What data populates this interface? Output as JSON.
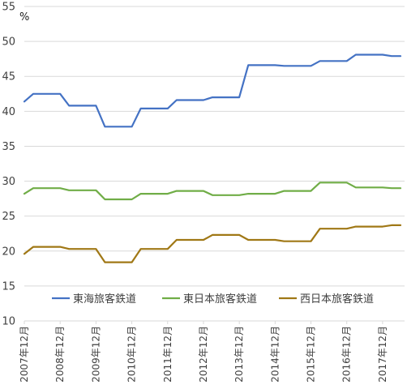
{
  "chart_data": {
    "type": "line",
    "title": "",
    "xlabel": "",
    "ylabel": "%",
    "ylim": [
      10,
      55
    ],
    "yticks": [
      10,
      15,
      20,
      25,
      30,
      35,
      40,
      45,
      50,
      55
    ],
    "grid": "horizontal",
    "legend_position": "lower-middle",
    "x": [
      "2007年12月",
      "2008年3月",
      "2008年6月",
      "2008年9月",
      "2008年12月",
      "2009年3月",
      "2009年6月",
      "2009年9月",
      "2009年12月",
      "2010年3月",
      "2010年6月",
      "2010年9月",
      "2010年12月",
      "2011年3月",
      "2011年6月",
      "2011年9月",
      "2011年12月",
      "2012年3月",
      "2012年6月",
      "2012年9月",
      "2012年12月",
      "2013年3月",
      "2013年6月",
      "2013年9月",
      "2013年12月",
      "2014年3月",
      "2014年6月",
      "2014年9月",
      "2014年12月",
      "2015年3月",
      "2015年6月",
      "2015年9月",
      "2015年12月",
      "2016年3月",
      "2016年6月",
      "2016年9月",
      "2016年12月",
      "2017年3月",
      "2017年6月",
      "2017年9月",
      "2017年12月",
      "2018年3月",
      "2018年6月"
    ],
    "x_tick_labels": [
      "2007年12月",
      "2008年12月",
      "2009年12月",
      "2010年12月",
      "2011年12月",
      "2012年12月",
      "2013年12月",
      "2014年12月",
      "2015年12月",
      "2016年12月",
      "2017年12月"
    ],
    "series": [
      {
        "name": "東海旅客鉄道",
        "color": "#4472C4",
        "values": [
          41.4,
          42.5,
          42.5,
          42.5,
          42.5,
          40.8,
          40.8,
          40.8,
          40.8,
          37.8,
          37.8,
          37.8,
          37.8,
          40.4,
          40.4,
          40.4,
          40.4,
          41.6,
          41.6,
          41.6,
          41.6,
          42.0,
          42.0,
          42.0,
          42.0,
          46.6,
          46.6,
          46.6,
          46.6,
          46.5,
          46.5,
          46.5,
          46.5,
          47.2,
          47.2,
          47.2,
          47.2,
          48.1,
          48.1,
          48.1,
          48.1,
          47.9,
          47.9
        ]
      },
      {
        "name": "東日本旅客鉄道",
        "color": "#70AD47",
        "values": [
          28.2,
          29.0,
          29.0,
          29.0,
          29.0,
          28.7,
          28.7,
          28.7,
          28.7,
          27.4,
          27.4,
          27.4,
          27.4,
          28.2,
          28.2,
          28.2,
          28.2,
          28.6,
          28.6,
          28.6,
          28.6,
          28.0,
          28.0,
          28.0,
          28.0,
          28.2,
          28.2,
          28.2,
          28.2,
          28.6,
          28.6,
          28.6,
          28.6,
          29.8,
          29.8,
          29.8,
          29.8,
          29.1,
          29.1,
          29.1,
          29.1,
          29.0,
          29.0
        ]
      },
      {
        "name": "西日本旅客鉄道",
        "color": "#A07816",
        "values": [
          19.6,
          20.6,
          20.6,
          20.6,
          20.6,
          20.3,
          20.3,
          20.3,
          20.3,
          18.4,
          18.4,
          18.4,
          18.4,
          20.3,
          20.3,
          20.3,
          20.3,
          21.6,
          21.6,
          21.6,
          21.6,
          22.3,
          22.3,
          22.3,
          22.3,
          21.6,
          21.6,
          21.6,
          21.6,
          21.4,
          21.4,
          21.4,
          21.4,
          23.2,
          23.2,
          23.2,
          23.2,
          23.5,
          23.5,
          23.5,
          23.5,
          23.7,
          23.7
        ]
      }
    ]
  },
  "colors": {
    "gridline": "#D9D9D9",
    "axis_text": "#404040"
  }
}
